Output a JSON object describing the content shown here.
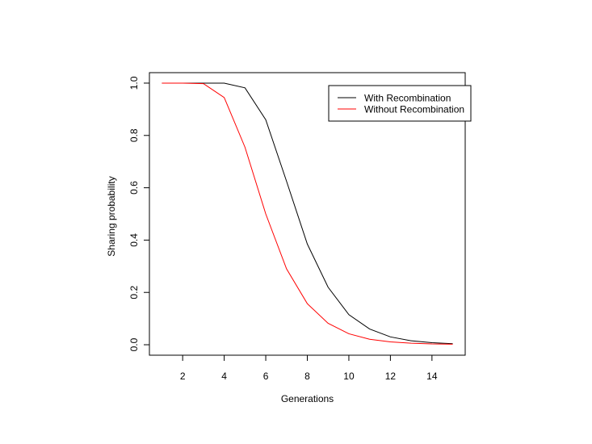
{
  "chart_data": {
    "type": "line",
    "title": "",
    "xlabel": "Generations",
    "ylabel": "Sharing probability",
    "xlim": [
      0.4,
      15.6
    ],
    "ylim": [
      -0.04,
      1.04
    ],
    "xticks": [
      2,
      4,
      6,
      8,
      10,
      12,
      14
    ],
    "xtick_labels": [
      "2",
      "4",
      "6",
      "8",
      "10",
      "12",
      "14"
    ],
    "yticks": [
      0.0,
      0.2,
      0.4,
      0.6,
      0.8,
      1.0
    ],
    "ytick_labels": [
      "0.0",
      "0.2",
      "0.4",
      "0.6",
      "0.8",
      "1.0"
    ],
    "grid": false,
    "legend_position": "top-right",
    "x": [
      1,
      2,
      3,
      4,
      5,
      6,
      7,
      8,
      9,
      10,
      11,
      12,
      13,
      14,
      15
    ],
    "series": [
      {
        "name": "With Recombination",
        "color": "#000000",
        "values": [
          1.0,
          1.0,
          1.0,
          1.0,
          0.982,
          0.86,
          0.625,
          0.385,
          0.22,
          0.115,
          0.06,
          0.03,
          0.015,
          0.008,
          0.004
        ]
      },
      {
        "name": "Without Recombination",
        "color": "#ff0000",
        "values": [
          1.0,
          1.0,
          0.998,
          0.945,
          0.755,
          0.5,
          0.29,
          0.157,
          0.082,
          0.042,
          0.021,
          0.011,
          0.006,
          0.003,
          0.002
        ]
      }
    ]
  }
}
